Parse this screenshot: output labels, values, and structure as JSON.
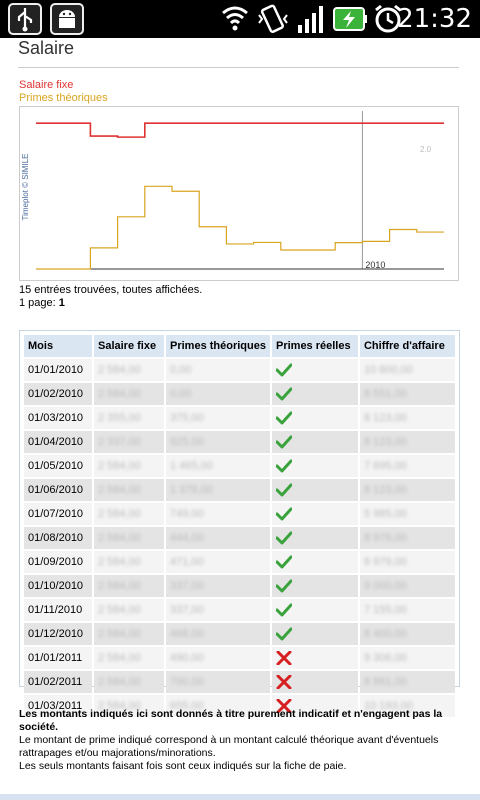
{
  "status_bar": {
    "time": "21:32",
    "icons": [
      "usb-icon",
      "android-debug-icon",
      "wifi-icon",
      "vibrate-icon",
      "signal-icon",
      "battery-charging-icon",
      "alarm-icon"
    ]
  },
  "page": {
    "title": "Salaire"
  },
  "legend": {
    "fixe": "Salaire fixe",
    "primes": "Primes théoriques",
    "fixe_color": "#e03232",
    "primes_color": "#d9a520"
  },
  "chart_data": {
    "type": "line",
    "watermark": "Timeplot © SIMILE",
    "x_label_2010": "2010",
    "right_ticks": [
      "2.0",
      ""
    ],
    "x": [
      "01/01/2010",
      "01/02/2010",
      "01/03/2010",
      "01/04/2010",
      "01/05/2010",
      "01/06/2010",
      "01/07/2010",
      "01/08/2010",
      "01/09/2010",
      "01/10/2010",
      "01/11/2010",
      "01/12/2010",
      "01/01/2011",
      "01/02/2011",
      "01/03/2011"
    ],
    "series": [
      {
        "name": "Salaire fixe",
        "color": "#e03232",
        "values": [
          2584,
          2584,
          2355,
          2337,
          2584,
          2584,
          2584,
          2584,
          2584,
          2584,
          2584,
          2584,
          2584,
          2584,
          2584
        ]
      },
      {
        "name": "Primes théoriques",
        "color": "#d9a520",
        "values": [
          0,
          0,
          375,
          925,
          1465,
          1378,
          749,
          444,
          471,
          337,
          337,
          468,
          490,
          700,
          655
        ]
      }
    ],
    "ylim": [
      0,
      2800
    ]
  },
  "results": {
    "entries": "15 entrées trouvées, toutes affichées.",
    "pages_prefix": "1 page:",
    "pages_current": "1"
  },
  "table": {
    "headers": [
      "Mois",
      "Salaire fixe",
      "Primes théoriques",
      "Primes réelles",
      "Chiffre d'affaire"
    ],
    "rows": [
      {
        "mois": "01/01/2010",
        "fixe": "2 584,00",
        "primes": "0,00",
        "reelles": "check",
        "ca": "10 800,00"
      },
      {
        "mois": "01/02/2010",
        "fixe": "2 584,00",
        "primes": "0,00",
        "reelles": "check",
        "ca": "8 551,00"
      },
      {
        "mois": "01/03/2010",
        "fixe": "2 355,00",
        "primes": "375,00",
        "reelles": "check",
        "ca": "8 123,00"
      },
      {
        "mois": "01/04/2010",
        "fixe": "2 337,00",
        "primes": "925,00",
        "reelles": "check",
        "ca": "8 123,00"
      },
      {
        "mois": "01/05/2010",
        "fixe": "2 584,00",
        "primes": "1 465,00",
        "reelles": "check",
        "ca": "7 695,00"
      },
      {
        "mois": "01/06/2010",
        "fixe": "2 584,00",
        "primes": "1 378,00",
        "reelles": "check",
        "ca": "8 123,00"
      },
      {
        "mois": "01/07/2010",
        "fixe": "2 584,00",
        "primes": "749,00",
        "reelles": "check",
        "ca": "5 985,00"
      },
      {
        "mois": "01/08/2010",
        "fixe": "2 584,00",
        "primes": "444,00",
        "reelles": "check",
        "ca": "8 978,00"
      },
      {
        "mois": "01/09/2010",
        "fixe": "2 584,00",
        "primes": "471,00",
        "reelles": "check",
        "ca": "6 979,00"
      },
      {
        "mois": "01/10/2010",
        "fixe": "2 584,00",
        "primes": "337,00",
        "reelles": "check",
        "ca": "9 000,00"
      },
      {
        "mois": "01/11/2010",
        "fixe": "2 584,00",
        "primes": "337,00",
        "reelles": "check",
        "ca": "7 155,00"
      },
      {
        "mois": "01/12/2010",
        "fixe": "2 584,00",
        "primes": "468,00",
        "reelles": "check",
        "ca": "8 400,00"
      },
      {
        "mois": "01/01/2011",
        "fixe": "2 584,00",
        "primes": "490,00",
        "reelles": "cross",
        "ca": "9 306,00"
      },
      {
        "mois": "01/02/2011",
        "fixe": "2 584,00",
        "primes": "700,00",
        "reelles": "cross",
        "ca": "8 861,00"
      },
      {
        "mois": "01/03/2011",
        "fixe": "2 584,00",
        "primes": "655,00",
        "reelles": "cross",
        "ca": "10 193,00"
      }
    ],
    "check_color": "#3aa23a",
    "cross_color": "#d62020"
  },
  "disclaimer": {
    "bold": "Les montants indiqués ici sont donnés à titre purement indicatif et n'engagent pas la société.",
    "line2": "Le montant de prime indiqué correspond à un montant calculé théorique avant d'éventuels rattrapages et/ou majorations/minorations.",
    "line3": "Les seuls montants faisant fois sont ceux indiqués sur la fiche de paie."
  }
}
